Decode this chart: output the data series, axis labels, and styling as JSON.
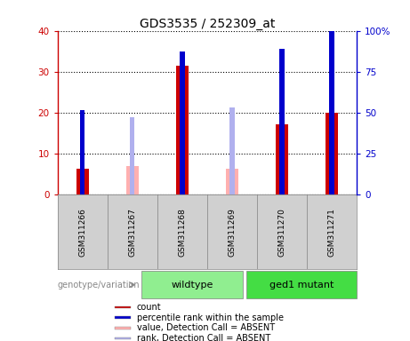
{
  "title": "GDS3535 / 252309_at",
  "samples": [
    "GSM311266",
    "GSM311267",
    "GSM311268",
    "GSM311269",
    "GSM311270",
    "GSM311271"
  ],
  "count_values": [
    6.2,
    null,
    31.5,
    null,
    17.2,
    20.0
  ],
  "rank_values": [
    20.5,
    null,
    35.0,
    null,
    35.5,
    40.0
  ],
  "absent_value": [
    null,
    7.0,
    null,
    6.2,
    null,
    null
  ],
  "absent_rank": [
    null,
    18.75,
    null,
    21.25,
    null,
    null
  ],
  "ylim_left": [
    0,
    40
  ],
  "ylim_right": [
    0,
    100
  ],
  "yticks_left": [
    0,
    10,
    20,
    30,
    40
  ],
  "yticks_right": [
    0,
    25,
    50,
    75,
    100
  ],
  "ytick_labels_right": [
    "0",
    "25",
    "50",
    "75",
    "100%"
  ],
  "count_color": "#cc0000",
  "rank_color": "#0000cc",
  "absent_value_color": "#ffb0b0",
  "absent_rank_color": "#b0b0ee",
  "plot_bg": "#ffffff",
  "sample_bg": "#d0d0d0",
  "wildtype_color": "#90ee90",
  "mutant_color": "#44dd44",
  "group_label": "genotype/variation",
  "wildtype_label": "wildtype",
  "mutant_label": "ged1 mutant",
  "legend_items": [
    "count",
    "percentile rank within the sample",
    "value, Detection Call = ABSENT",
    "rank, Detection Call = ABSENT"
  ],
  "legend_colors": [
    "#cc0000",
    "#0000cc",
    "#ffb0b0",
    "#b0b0ee"
  ]
}
